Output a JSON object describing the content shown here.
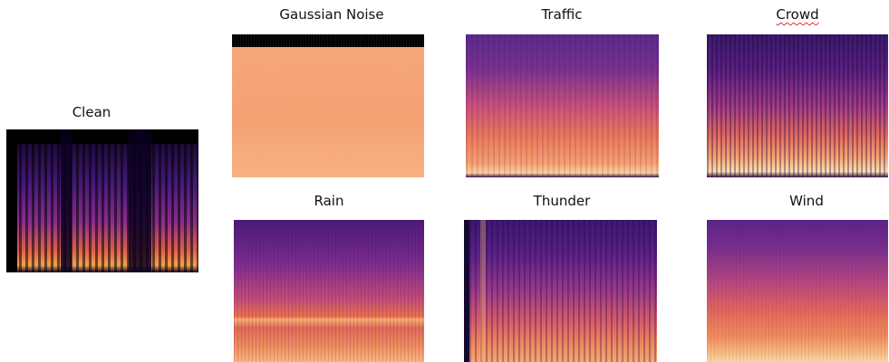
{
  "panels": [
    {
      "label": "Clean"
    },
    {
      "label": "Gaussian Noise"
    },
    {
      "label": "Traffic"
    },
    {
      "label": "Crowd"
    },
    {
      "label": "Rain"
    },
    {
      "label": "Thunder"
    },
    {
      "label": "Wind"
    }
  ]
}
